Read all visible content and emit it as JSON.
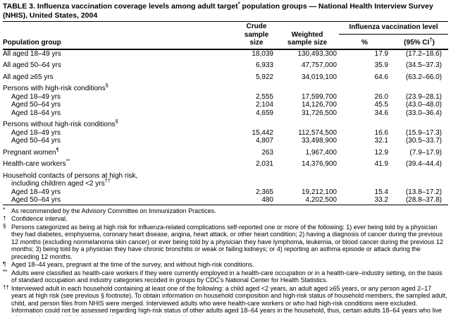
{
  "title": {
    "pre": "TABLE 3. Influenza vaccination coverage levels among adult target",
    "sup": "*",
    "post": " population groups — National Health Interview Survey (NHIS), United States, 2004"
  },
  "table": {
    "header": {
      "population": "Population group",
      "crude_line1": "Crude",
      "crude_line2": "sample size",
      "weighted_line1": "Weighted",
      "weighted_line2": "sample size",
      "span": "Influenza vaccination level",
      "pct": "%",
      "ci_pre": "(95% CI",
      "ci_sup": "†",
      "ci_post": ")"
    },
    "rows": [
      {
        "type": "data",
        "label": "All aged 18–49 yrs",
        "marker": "",
        "indent": 0,
        "gap": false,
        "crude": "18,039",
        "weighted": "130,493,300",
        "pct": "17.9",
        "ci": "(17.2–18.6)"
      },
      {
        "type": "data",
        "label": "All aged 50–64 yrs",
        "marker": "",
        "indent": 0,
        "gap": true,
        "crude": "6,933",
        "weighted": "47,757,000",
        "pct": "35.9",
        "ci": "(34.5–37.3)"
      },
      {
        "type": "data",
        "label": "All aged ≥65 yrs",
        "marker": "",
        "indent": 0,
        "gap": true,
        "crude": "5,922",
        "weighted": "34,019,100",
        "pct": "64.6",
        "ci": "(63.2–66.0)"
      },
      {
        "type": "group",
        "label": "Persons with high-risk conditions",
        "marker": "§",
        "indent": 0,
        "gap": true
      },
      {
        "type": "data",
        "label": "Aged 18–49 yrs",
        "marker": "",
        "indent": 1,
        "gap": false,
        "crude": "2,555",
        "weighted": "17,599,700",
        "pct": "26.0",
        "ci": "(23.9–28.1)"
      },
      {
        "type": "data",
        "label": "Aged 50–64 yrs",
        "marker": "",
        "indent": 1,
        "gap": false,
        "crude": "2,104",
        "weighted": "14,126,700",
        "pct": "45.5",
        "ci": "(43.0–48.0)"
      },
      {
        "type": "data",
        "label": "Aged 18–64 yrs",
        "marker": "",
        "indent": 1,
        "gap": false,
        "crude": "4,659",
        "weighted": "31,726,500",
        "pct": "34.6",
        "ci": "(33.0–36.4)"
      },
      {
        "type": "group",
        "label": "Persons without high-risk conditions",
        "marker": "§",
        "indent": 0,
        "gap": true
      },
      {
        "type": "data",
        "label": "Aged 18–49 yrs",
        "marker": "",
        "indent": 1,
        "gap": false,
        "crude": "15,442",
        "weighted": "112,574,500",
        "pct": "16.6",
        "ci": "(15.9–17.3)"
      },
      {
        "type": "data",
        "label": "Aged 50–64 yrs",
        "marker": "",
        "indent": 1,
        "gap": false,
        "crude": "4,807",
        "weighted": "33,498,900",
        "pct": "32.1",
        "ci": "(30.5–33.7)"
      },
      {
        "type": "data",
        "label": "Pregnant women",
        "marker": "¶",
        "indent": 0,
        "gap": true,
        "crude": "263",
        "weighted": "1,967,400",
        "pct": "12.9",
        "ci": "(7.9–17.9)"
      },
      {
        "type": "data",
        "label": "Health-care workers",
        "marker": "**",
        "indent": 0,
        "gap": true,
        "crude": "2,031",
        "weighted": "14,376,900",
        "pct": "41.9",
        "ci": "(39.4–44.4)"
      },
      {
        "type": "group",
        "label": "Household contacts of persons at high risk,",
        "marker": "",
        "indent": 0,
        "gap": true
      },
      {
        "type": "group",
        "label": "including children aged <2 yrs",
        "marker": "††",
        "indent": 1,
        "gap": false
      },
      {
        "type": "data",
        "label": "Aged 18–49 yrs",
        "marker": "",
        "indent": 1,
        "gap": false,
        "crude": "2,365",
        "weighted": "19,212,100",
        "pct": "15.4",
        "ci": "(13.8–17.2)"
      },
      {
        "type": "data",
        "label": "Aged 50–64 yrs",
        "marker": "",
        "indent": 1,
        "gap": false,
        "crude": "480",
        "weighted": "4,202,500",
        "pct": "33.2",
        "ci": "(28.8–37.8)"
      }
    ]
  },
  "footnotes": [
    {
      "marker": "*",
      "text": "As recommended by the Advisory Committee on Immunization Practices."
    },
    {
      "marker": "†",
      "text": "Confidence interval."
    },
    {
      "marker": "§",
      "text": "Persons categorized as being at high risk for influenza-related complications self-reported one or more of the following: 1) ever being told by a physician they had diabetes, emphysema, coronary heart disease, angina, heart attack, or other heart condition; 2) having a diagnosis of cancer during the previous 12 months (excluding nonmelanoma skin cancer) or ever being told by a physician they have lymphoma, leukemia, or blood cancer during the previous 12 months; 3) being told by a physician they have chronic bronchitis or weak or failing kidneys; or 4) reporting an asthma episode or attack during the preceding 12 months."
    },
    {
      "marker": "¶",
      "text": "Aged 18–44 years, pregnant at the time of the survey, and without high-risk conditions."
    },
    {
      "marker": "**",
      "text": "Adults were classified as health-care workers if they were currently employed in a health-care occupation or in a health-care–industry setting, on the basis of standard occupation and industry categories recoded in groups by CDC's National Center for Health Statistics."
    },
    {
      "marker": "††",
      "text": "Interviewed adult in each household containing at least one of the following: a child aged <2 years, an adult aged ≥65 years, or any person aged 2–17 years at high risk (see previous § footnote). To obtain information on household composition and high-risk status of household members, the sampled adult, child, and person files from NHIS were merged. Interviewed adults who were health-care workers or who had high-risk conditions were excluded. Information could not be assessed regarding high-risk status of other adults aged 18–64 years in the household, thus, certain adults 18–64 years who live with an adult aged 18–64 years at high risk were not included in the analysis."
    }
  ],
  "colors": {
    "text": "#000000",
    "background": "#ffffff",
    "rule": "#000000"
  }
}
